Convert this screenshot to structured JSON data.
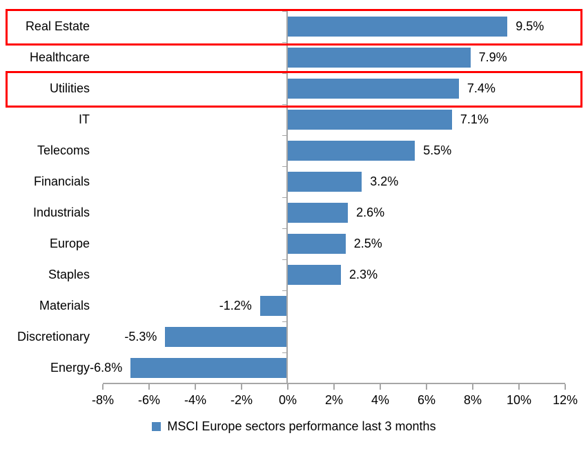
{
  "chart_data": {
    "type": "bar",
    "orientation": "horizontal",
    "title": "",
    "xlabel": "",
    "ylabel": "",
    "categories": [
      "Real Estate",
      "Healthcare",
      "Utilities",
      "IT",
      "Telecoms",
      "Financials",
      "Industrials",
      "Europe",
      "Staples",
      "Materials",
      "Discretionary",
      "Energy"
    ],
    "values": [
      9.5,
      7.9,
      7.4,
      7.1,
      5.5,
      3.2,
      2.6,
      2.5,
      2.3,
      -1.2,
      -5.3,
      -6.8
    ],
    "data_labels": [
      "9.5%",
      "7.9%",
      "7.4%",
      "7.1%",
      "5.5%",
      "3.2%",
      "2.6%",
      "2.5%",
      "2.3%",
      "-1.2%",
      "-5.3%",
      "-6.8%"
    ],
    "series_name": "MSCI Europe sectors performance last 3 months",
    "x_ticks": [
      {
        "value": -8,
        "label": "-8%"
      },
      {
        "value": -6,
        "label": "-6%"
      },
      {
        "value": -4,
        "label": "-4%"
      },
      {
        "value": -2,
        "label": "-2%"
      },
      {
        "value": 0,
        "label": "0%"
      },
      {
        "value": 2,
        "label": "2%"
      },
      {
        "value": 4,
        "label": "4%"
      },
      {
        "value": 6,
        "label": "6%"
      },
      {
        "value": 8,
        "label": "8%"
      },
      {
        "value": 10,
        "label": "10%"
      },
      {
        "value": 12,
        "label": "12%"
      }
    ],
    "xlim": [
      -8,
      12
    ],
    "grid": false,
    "legend_position": "bottom-center",
    "highlighted_categories": [
      "Real Estate",
      "Utilities"
    ],
    "colors": {
      "bar": "#4e87be",
      "highlight_border": "#ff0000",
      "axis": "#a6a6a6",
      "text": "#000000",
      "background": "#ffffff"
    }
  }
}
